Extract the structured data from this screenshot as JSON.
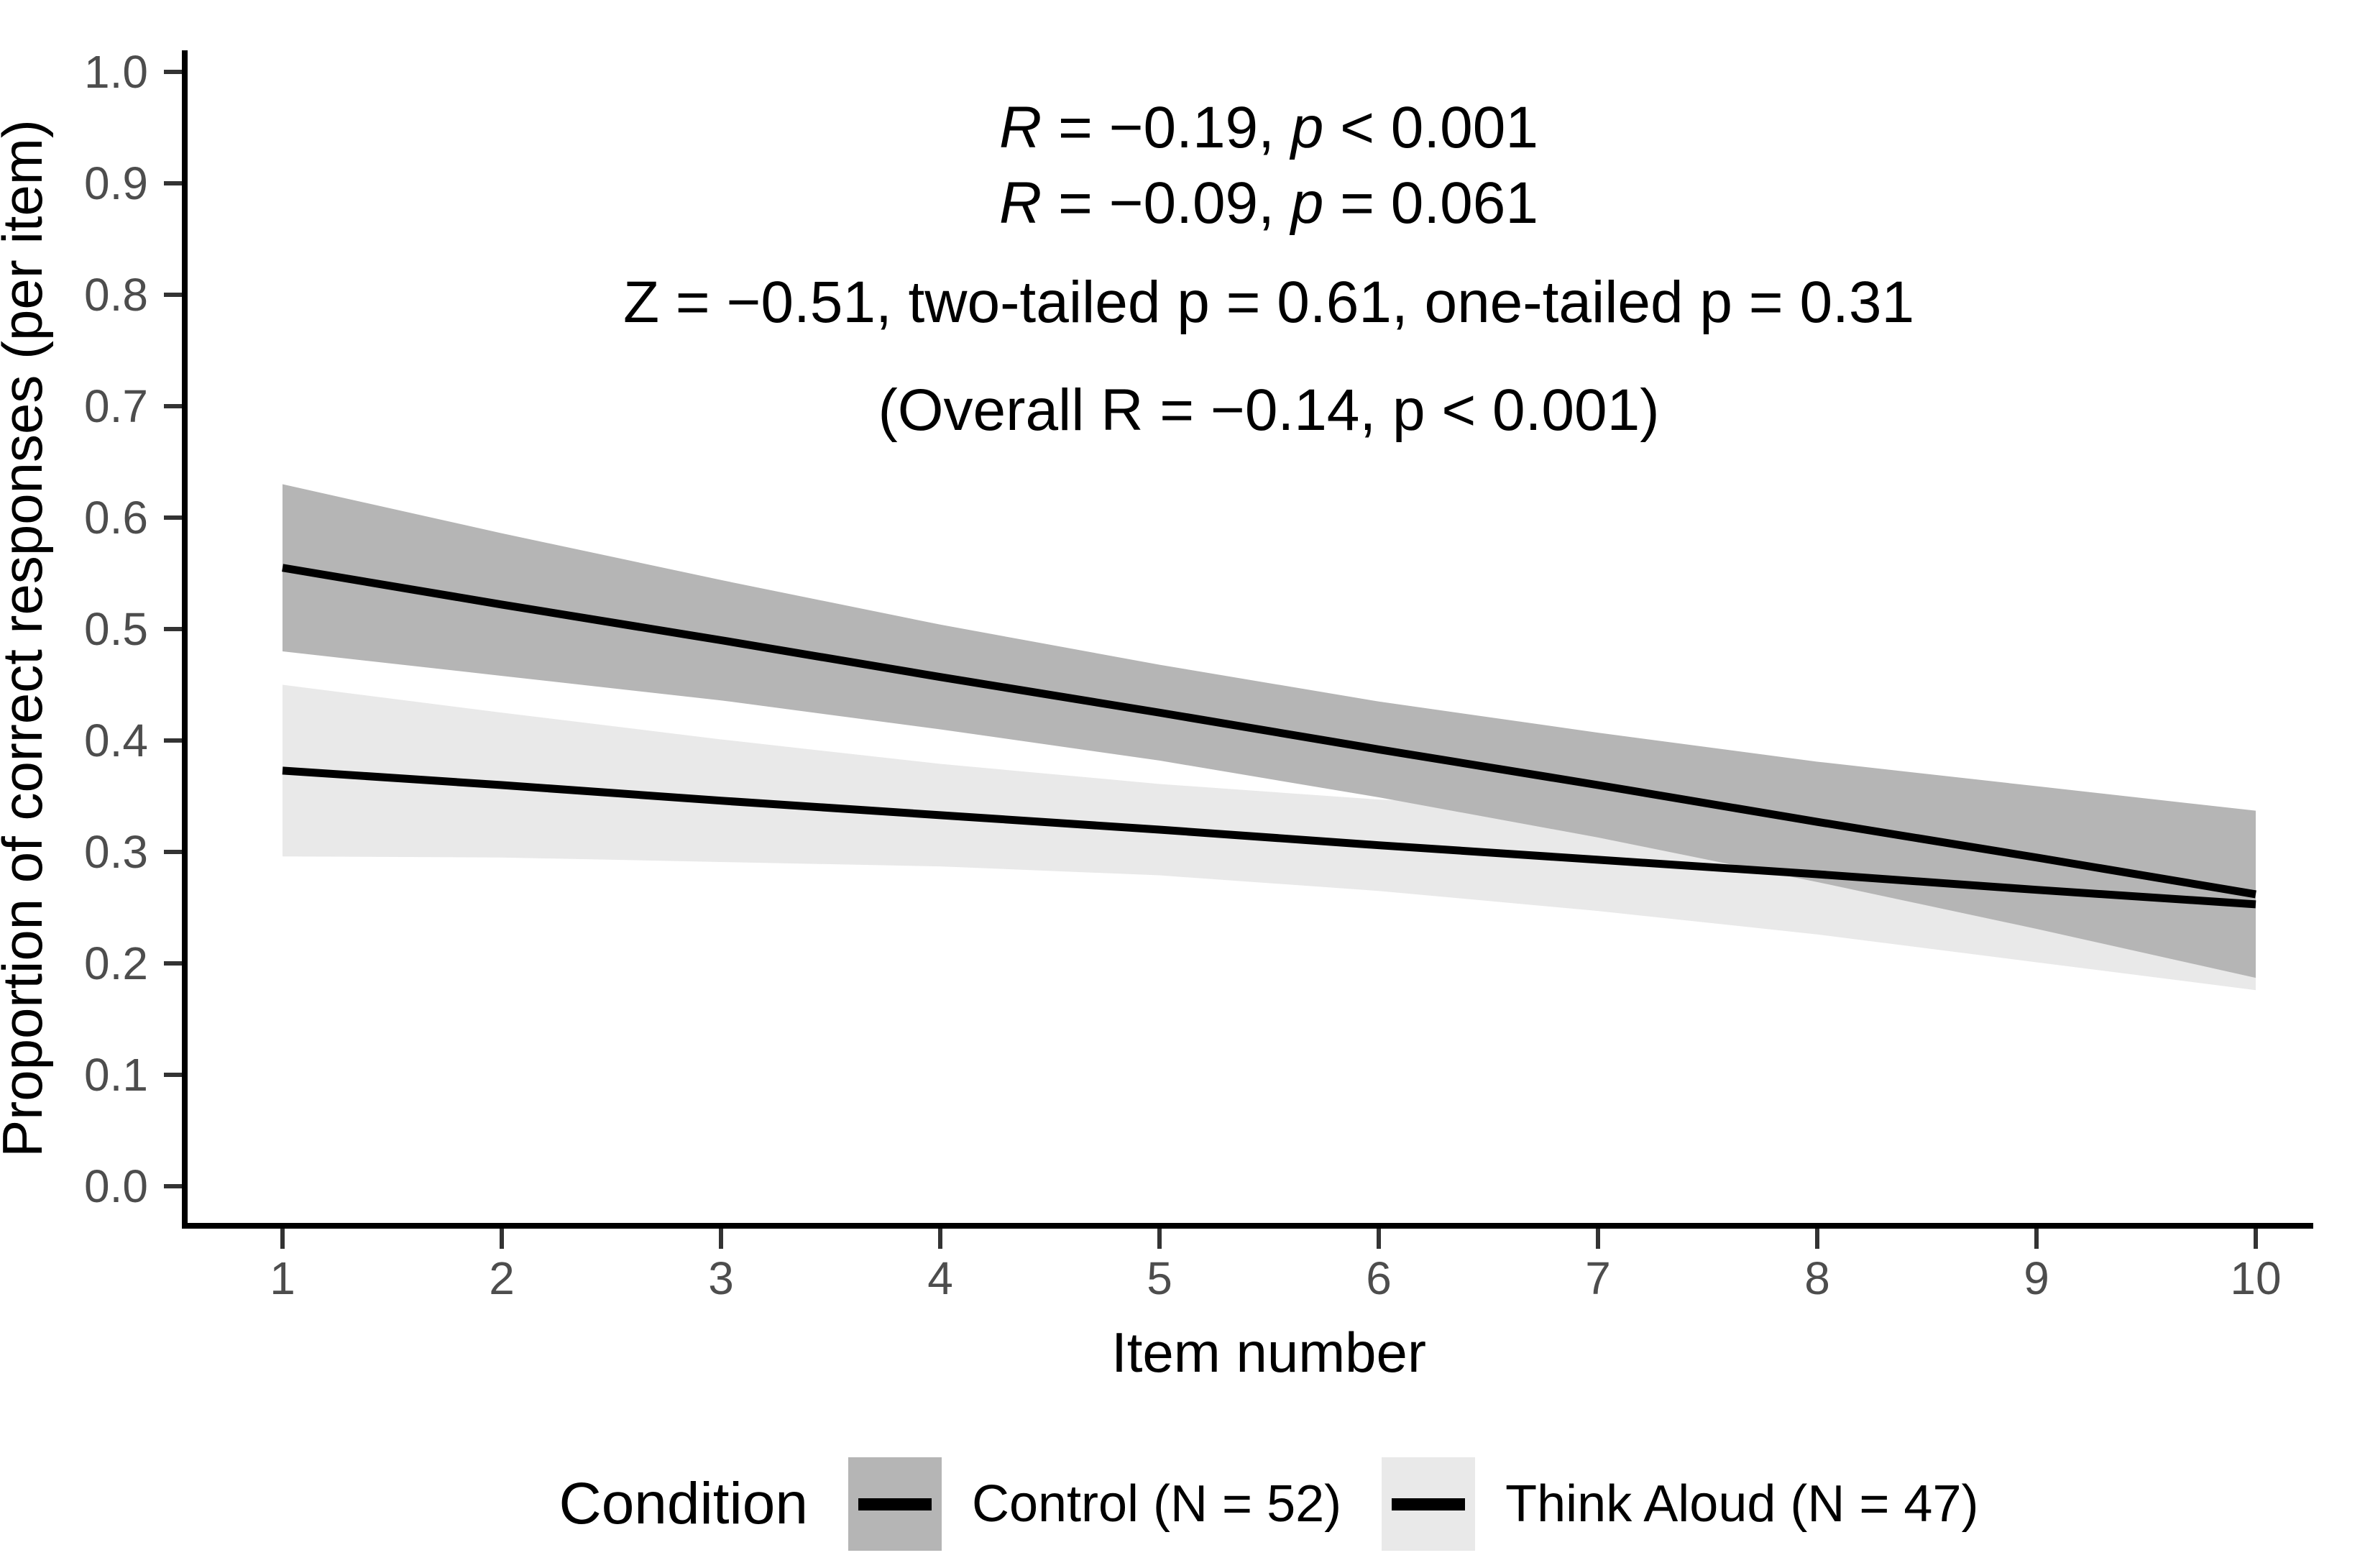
{
  "chart_data": {
    "type": "line",
    "title": "",
    "xlabel": "Item number",
    "ylabel": "Proportion of correct responses (per item)",
    "legend_title": "Condition",
    "legend_position": "bottom",
    "grid": false,
    "x": [
      1,
      2,
      3,
      4,
      5,
      6,
      7,
      8,
      9,
      10
    ],
    "xticks": [
      "1",
      "2",
      "3",
      "4",
      "5",
      "6",
      "7",
      "8",
      "9",
      "10"
    ],
    "yticks": [
      "1.0",
      "0.9",
      "0.8",
      "0.7",
      "0.6",
      "0.5",
      "0.4",
      "0.3",
      "0.2",
      "0.1",
      "0.0"
    ],
    "xlim": [
      0.55,
      10.45
    ],
    "ylim": [
      0.0,
      1.0
    ],
    "series": [
      {
        "name": "Control (N = 52)",
        "n": 52,
        "color": "#000000",
        "band_color": "#b5b5b5",
        "values": [
          0.555,
          0.522,
          0.49,
          0.457,
          0.425,
          0.392,
          0.36,
          0.327,
          0.295,
          0.262
        ],
        "band_upper": [
          0.63,
          0.586,
          0.544,
          0.504,
          0.468,
          0.435,
          0.407,
          0.381,
          0.359,
          0.337
        ],
        "band_lower": [
          0.48,
          0.458,
          0.436,
          0.41,
          0.382,
          0.349,
          0.313,
          0.273,
          0.231,
          0.187
        ]
      },
      {
        "name": "Think Aloud (N = 47)",
        "n": 47,
        "color": "#000000",
        "band_color": "#e9e9e9",
        "values": [
          0.373,
          0.36,
          0.346,
          0.333,
          0.32,
          0.306,
          0.293,
          0.28,
          0.266,
          0.253
        ],
        "band_upper": [
          0.45,
          0.425,
          0.401,
          0.379,
          0.361,
          0.347,
          0.339,
          0.334,
          0.331,
          0.33
        ],
        "band_lower": [
          0.296,
          0.295,
          0.291,
          0.287,
          0.279,
          0.265,
          0.247,
          0.226,
          0.201,
          0.176
        ]
      }
    ],
    "annotations": [
      {
        "text": "R = −0.19, p < 0.001",
        "segments": [
          {
            "text": "R",
            "italic": true
          },
          {
            "text": " = −0.19, ",
            "italic": false
          },
          {
            "text": "p",
            "italic": true
          },
          {
            "text": " < 0.001",
            "italic": false
          }
        ]
      },
      {
        "text": "R = −0.09, p = 0.061",
        "segments": [
          {
            "text": "R",
            "italic": true
          },
          {
            "text": " = −0.09, ",
            "italic": false
          },
          {
            "text": "p",
            "italic": true
          },
          {
            "text": " = 0.061",
            "italic": false
          }
        ]
      },
      {
        "text": "Z = −0.51, two-tailed p = 0.61, one-tailed p = 0.31",
        "segments": [
          {
            "text": "Z = −0.51, two-tailed p = 0.61, one-tailed p = 0.31",
            "italic": false
          }
        ]
      },
      {
        "text": "(Overall R = −0.14, p < 0.001)",
        "segments": [
          {
            "text": "(Overall R = −0.14, p < 0.001)",
            "italic": false
          }
        ]
      }
    ],
    "colors": {
      "line": "#000000",
      "band_control": "#b5b5b5",
      "band_think_aloud": "#e9e9e9",
      "tick_label": "#4d4d4d",
      "axis_line": "#000000",
      "tick_mark": "#333333",
      "text": "#000000",
      "background": "#ffffff"
    }
  }
}
